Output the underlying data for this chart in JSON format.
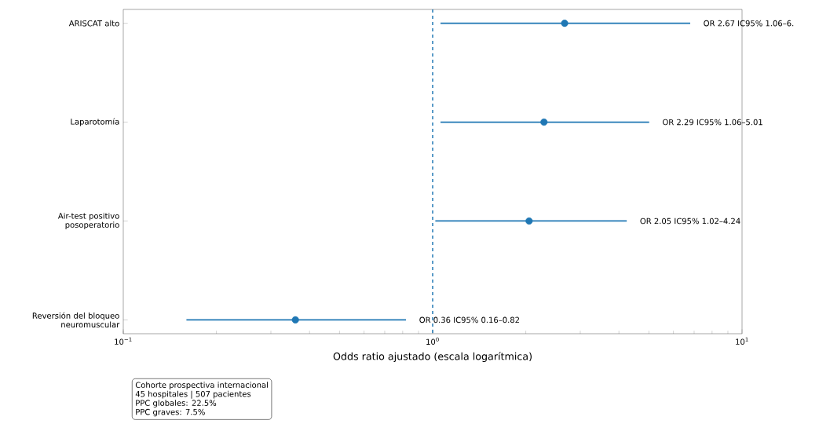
{
  "chart_data": {
    "type": "scatter",
    "orientation": "horizontal",
    "color": "#1f77b4",
    "log": "x",
    "categories": [
      "ARISCAT alto",
      "Laparotomía",
      "Air-test positivo posoperatorio",
      "Reversión del bloqueo neuromuscular"
    ],
    "values": [
      2.67,
      2.29,
      2.05,
      0.36
    ],
    "errors": [
      [
        1.06,
        6.8
      ],
      [
        1.06,
        5.01
      ],
      [
        1.02,
        4.24
      ],
      [
        0.16,
        0.82
      ]
    ],
    "xlim": [
      0.1,
      10
    ],
    "xticks": [
      {
        "value": 0.1,
        "label": "10$^{−1}$"
      },
      {
        "value": 1,
        "label": "10$^{0}$"
      },
      {
        "value": 10,
        "label": "10$^{1}$"
      }
    ],
    "xlabel": "Odds ratio ajustado (escala logarítmica)",
    "ref_lines": [
      {
        "axis": "x",
        "value": 1,
        "line_style": "dashed",
        "color": "#1f77b4"
      }
    ],
    "annotations": [
      {
        "text": "OR 2.67  IC95% 1.06–6.",
        "x": 6.8,
        "y": "ARISCAT alto"
      },
      {
        "text": "OR 2.29  IC95% 1.06–5.01",
        "x": 5.01,
        "y": "Laparotomía"
      },
      {
        "text": "OR 2.05  IC95% 1.02–4.24",
        "x": 4.24,
        "y": "Air-test positivo posoperatorio"
      },
      {
        "text": "OR 0.36  IC95% 0.16–0.82",
        "x": 0.82,
        "y": "Reversión del bloqueo neuromuscular"
      },
      "Cohorte prospectiva internacional",
      "45 hospitales | 507 pacientes",
      "PPC globales: 22.5%",
      "PPC graves: 7.5%"
    ]
  }
}
